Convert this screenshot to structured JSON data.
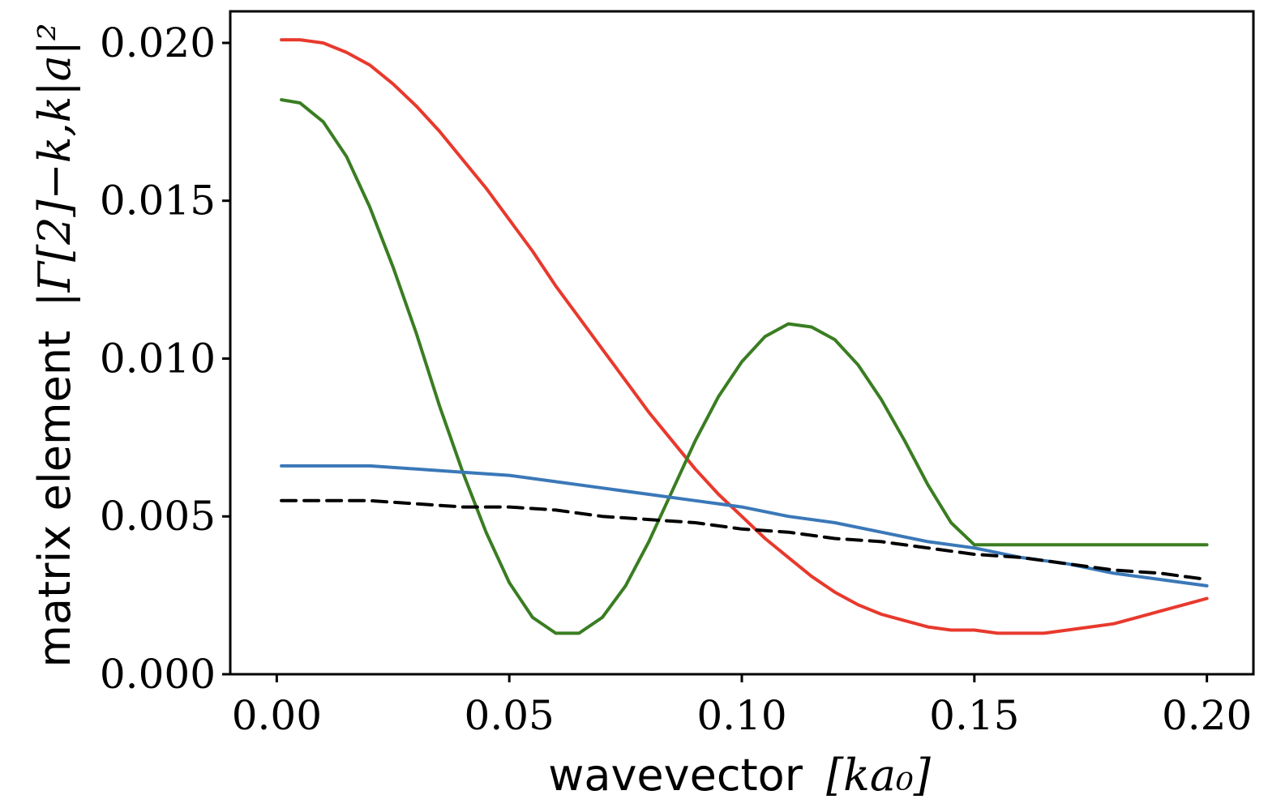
{
  "chart_data": {
    "type": "line",
    "xlabel": "wavevector",
    "xlabel_math": "[ka₀]",
    "ylabel": "matrix element",
    "ylabel_math": "|Γ[2]−k,k|a|²",
    "xlim": [
      -0.01,
      0.21
    ],
    "ylim": [
      0,
      0.021
    ],
    "xticks": [
      0.0,
      0.05,
      0.1,
      0.15,
      0.2
    ],
    "xtick_labels": [
      "0.00",
      "0.05",
      "0.10",
      "0.15",
      "0.20"
    ],
    "yticks": [
      0.0,
      0.005,
      0.01,
      0.015,
      0.02
    ],
    "ytick_labels": [
      "0.000",
      "0.005",
      "0.010",
      "0.015",
      "0.020"
    ],
    "grid": false,
    "series": [
      {
        "name": "red",
        "color": "#e8392d",
        "style": "solid",
        "x": [
          0.001,
          0.005,
          0.01,
          0.015,
          0.02,
          0.025,
          0.03,
          0.035,
          0.04,
          0.045,
          0.05,
          0.055,
          0.06,
          0.065,
          0.07,
          0.075,
          0.08,
          0.085,
          0.09,
          0.095,
          0.1,
          0.105,
          0.11,
          0.115,
          0.12,
          0.125,
          0.13,
          0.135,
          0.14,
          0.145,
          0.15,
          0.155,
          0.16,
          0.165,
          0.17,
          0.175,
          0.18,
          0.185,
          0.19,
          0.195,
          0.2
        ],
        "y": [
          0.0201,
          0.0201,
          0.02,
          0.0197,
          0.0193,
          0.0187,
          0.018,
          0.0172,
          0.0163,
          0.0154,
          0.0144,
          0.0134,
          0.0123,
          0.0113,
          0.0103,
          0.0093,
          0.0083,
          0.0074,
          0.0065,
          0.0057,
          0.005,
          0.0043,
          0.0037,
          0.0031,
          0.0026,
          0.0022,
          0.0019,
          0.0017,
          0.0015,
          0.0014,
          0.0014,
          0.0013,
          0.0013,
          0.0013,
          0.0014,
          0.0015,
          0.0016,
          0.0018,
          0.002,
          0.0022,
          0.0024
        ]
      },
      {
        "name": "green",
        "color": "#3a7d22",
        "style": "solid",
        "x": [
          0.001,
          0.005,
          0.01,
          0.015,
          0.02,
          0.025,
          0.03,
          0.035,
          0.04,
          0.045,
          0.05,
          0.055,
          0.06,
          0.065,
          0.07,
          0.075,
          0.08,
          0.085,
          0.09,
          0.095,
          0.1,
          0.105,
          0.11,
          0.115,
          0.12,
          0.125,
          0.13,
          0.135,
          0.14,
          0.145,
          0.15,
          0.155,
          0.16,
          0.165,
          0.17,
          0.175,
          0.18,
          0.185,
          0.19,
          0.195,
          0.2
        ],
        "y": [
          0.0182,
          0.0181,
          0.0175,
          0.0164,
          0.0148,
          0.0129,
          0.0108,
          0.0085,
          0.0064,
          0.0045,
          0.0029,
          0.0018,
          0.0013,
          0.0013,
          0.0018,
          0.0028,
          0.0042,
          0.0058,
          0.0074,
          0.0088,
          0.0099,
          0.0107,
          0.0111,
          0.011,
          0.0106,
          0.0098,
          0.0087,
          0.0074,
          0.006,
          0.0048,
          0.0041,
          0.0041,
          0.0041,
          0.0041,
          0.0041,
          0.0041,
          0.0041,
          0.0041,
          0.0041,
          0.0041,
          0.0041
        ]
      },
      {
        "name": "blue",
        "color": "#3a78b8",
        "style": "solid",
        "x": [
          0.001,
          0.01,
          0.02,
          0.03,
          0.04,
          0.05,
          0.06,
          0.07,
          0.08,
          0.09,
          0.1,
          0.11,
          0.12,
          0.13,
          0.14,
          0.15,
          0.16,
          0.17,
          0.18,
          0.19,
          0.2
        ],
        "y": [
          0.0066,
          0.0066,
          0.0066,
          0.0065,
          0.0064,
          0.0063,
          0.0061,
          0.0059,
          0.0057,
          0.0055,
          0.0053,
          0.005,
          0.0048,
          0.0045,
          0.0042,
          0.004,
          0.0037,
          0.0035,
          0.0032,
          0.003,
          0.0028
        ]
      },
      {
        "name": "black-dashed",
        "color": "#000000",
        "style": "dashed",
        "x": [
          0.001,
          0.01,
          0.02,
          0.03,
          0.04,
          0.05,
          0.06,
          0.07,
          0.08,
          0.09,
          0.1,
          0.11,
          0.12,
          0.13,
          0.14,
          0.15,
          0.16,
          0.17,
          0.18,
          0.19,
          0.2
        ],
        "y": [
          0.0055,
          0.0055,
          0.0055,
          0.0054,
          0.0053,
          0.0053,
          0.0052,
          0.005,
          0.0049,
          0.0048,
          0.0046,
          0.0045,
          0.0043,
          0.0042,
          0.004,
          0.0038,
          0.0037,
          0.0035,
          0.0033,
          0.0032,
          0.003
        ]
      }
    ]
  }
}
